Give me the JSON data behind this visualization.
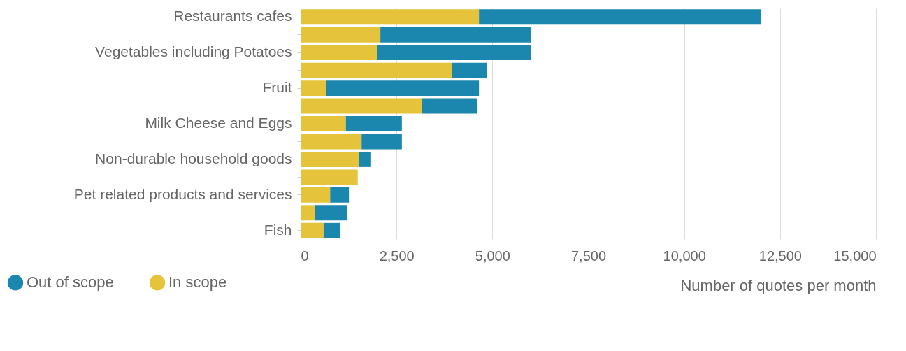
{
  "chart_data": {
    "type": "bar",
    "orientation": "horizontal",
    "stacked": true,
    "categories": [
      "Restaurants cafes",
      null,
      "Vegetables including Potatoes",
      null,
      "Fruit",
      null,
      "Milk Cheese and Eggs",
      null,
      "Non-durable household goods",
      null,
      "Pet related products and services",
      null,
      "Fish"
    ],
    "series": [
      {
        "name": "In scope",
        "color": "#e5c33a",
        "values": [
          4650,
          2080,
          2000,
          3950,
          670,
          3170,
          1180,
          1590,
          1530,
          1490,
          770,
          370,
          600
        ]
      },
      {
        "name": "Out of scope",
        "color": "#1b86ae",
        "values": [
          7350,
          3920,
          4000,
          900,
          3980,
          1430,
          1460,
          1050,
          290,
          0,
          490,
          840,
          440
        ]
      }
    ],
    "xlabel": "Number of quotes per month",
    "xlim": [
      0,
      15000
    ],
    "xticks": [
      0,
      {
        "value": 2500,
        "label": "2,500"
      },
      {
        "value": 5000,
        "label": "5,000"
      },
      {
        "value": 7500,
        "label": "7,500"
      },
      {
        "value": 10000,
        "label": "10,000"
      },
      {
        "value": 12500,
        "label": "12,500"
      },
      {
        "value": 15000,
        "label": "15,000"
      }
    ],
    "grid": "x",
    "legend": "bottom left"
  }
}
